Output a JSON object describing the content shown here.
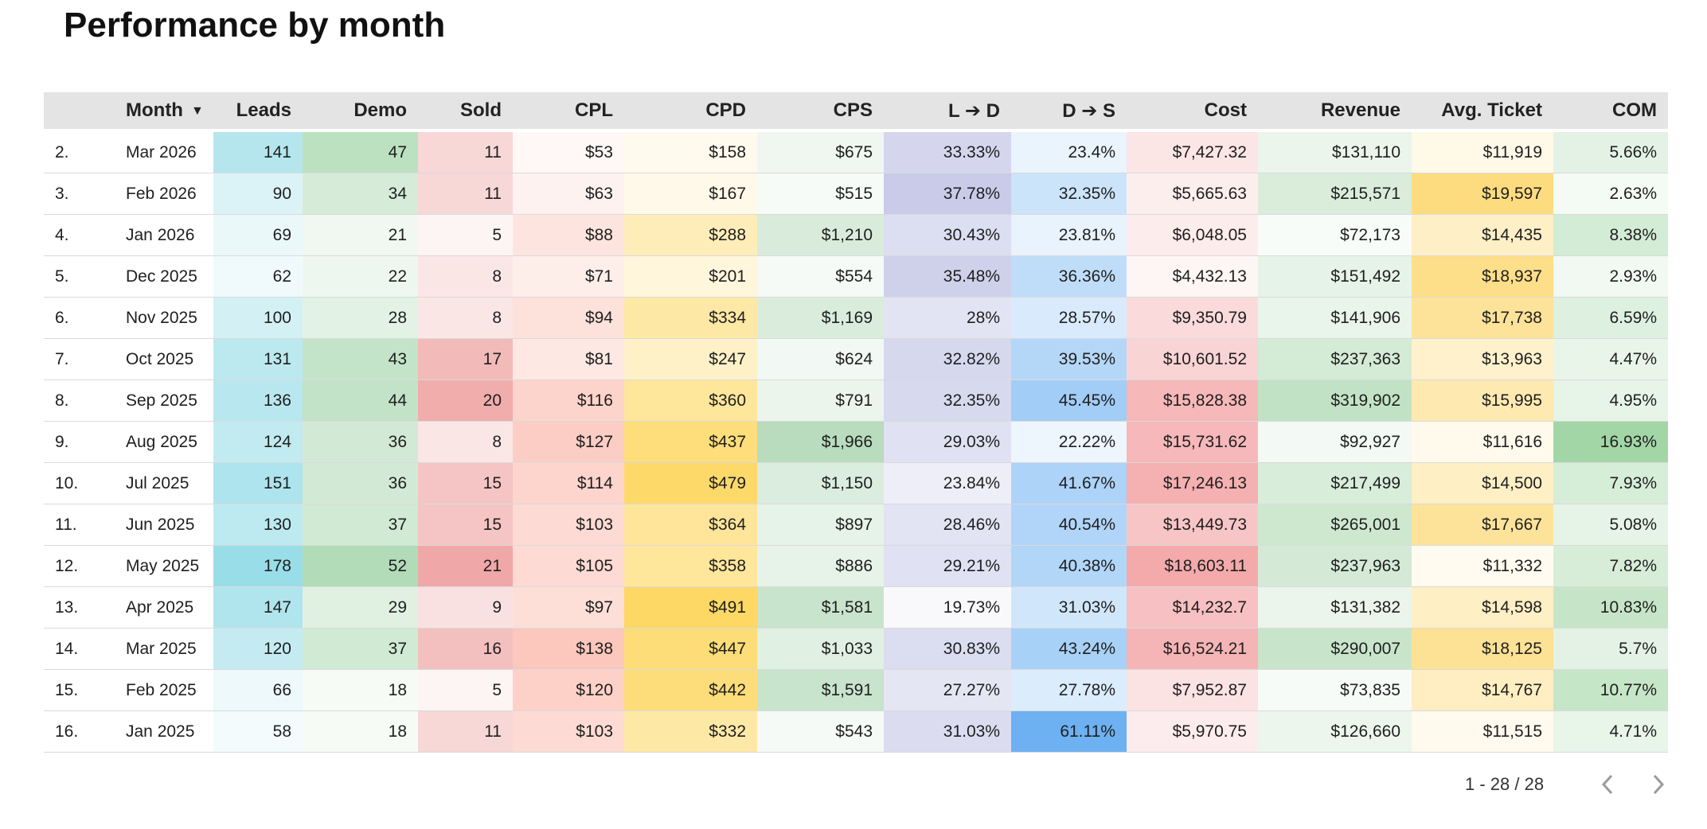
{
  "title": "Performance by month",
  "table": {
    "headers": {
      "index": "",
      "month": "Month",
      "leads": "Leads",
      "demo": "Demo",
      "sold": "Sold",
      "cpl": "CPL",
      "cpd": "CPD",
      "cps": "CPS",
      "l_to_d": "L ➔ D",
      "d_to_s": "D ➔ S",
      "cost": "Cost",
      "revenue": "Revenue",
      "avg_ticket": "Avg. Ticket",
      "com": "COM"
    },
    "sort_icon": "sort-descending-icon",
    "rows": [
      {
        "index": "2.",
        "month": "Mar 2026",
        "leads": "141",
        "demo": "47",
        "sold": "11",
        "cpl": "$53",
        "cpd": "$158",
        "cps": "$675",
        "l_to_d": "33.33%",
        "d_to_s": "23.4%",
        "cost": "$7,427.32",
        "revenue": "$131,110",
        "avg_ticket": "$11,919",
        "com": "5.66%"
      },
      {
        "index": "3.",
        "month": "Feb 2026",
        "leads": "90",
        "demo": "34",
        "sold": "11",
        "cpl": "$63",
        "cpd": "$167",
        "cps": "$515",
        "l_to_d": "37.78%",
        "d_to_s": "32.35%",
        "cost": "$5,665.63",
        "revenue": "$215,571",
        "avg_ticket": "$19,597",
        "com": "2.63%"
      },
      {
        "index": "4.",
        "month": "Jan 2026",
        "leads": "69",
        "demo": "21",
        "sold": "5",
        "cpl": "$88",
        "cpd": "$288",
        "cps": "$1,210",
        "l_to_d": "30.43%",
        "d_to_s": "23.81%",
        "cost": "$6,048.05",
        "revenue": "$72,173",
        "avg_ticket": "$14,435",
        "com": "8.38%"
      },
      {
        "index": "5.",
        "month": "Dec 2025",
        "leads": "62",
        "demo": "22",
        "sold": "8",
        "cpl": "$71",
        "cpd": "$201",
        "cps": "$554",
        "l_to_d": "35.48%",
        "d_to_s": "36.36%",
        "cost": "$4,432.13",
        "revenue": "$151,492",
        "avg_ticket": "$18,937",
        "com": "2.93%"
      },
      {
        "index": "6.",
        "month": "Nov 2025",
        "leads": "100",
        "demo": "28",
        "sold": "8",
        "cpl": "$94",
        "cpd": "$334",
        "cps": "$1,169",
        "l_to_d": "28%",
        "d_to_s": "28.57%",
        "cost": "$9,350.79",
        "revenue": "$141,906",
        "avg_ticket": "$17,738",
        "com": "6.59%"
      },
      {
        "index": "7.",
        "month": "Oct 2025",
        "leads": "131",
        "demo": "43",
        "sold": "17",
        "cpl": "$81",
        "cpd": "$247",
        "cps": "$624",
        "l_to_d": "32.82%",
        "d_to_s": "39.53%",
        "cost": "$10,601.52",
        "revenue": "$237,363",
        "avg_ticket": "$13,963",
        "com": "4.47%"
      },
      {
        "index": "8.",
        "month": "Sep 2025",
        "leads": "136",
        "demo": "44",
        "sold": "20",
        "cpl": "$116",
        "cpd": "$360",
        "cps": "$791",
        "l_to_d": "32.35%",
        "d_to_s": "45.45%",
        "cost": "$15,828.38",
        "revenue": "$319,902",
        "avg_ticket": "$15,995",
        "com": "4.95%"
      },
      {
        "index": "9.",
        "month": "Aug 2025",
        "leads": "124",
        "demo": "36",
        "sold": "8",
        "cpl": "$127",
        "cpd": "$437",
        "cps": "$1,966",
        "l_to_d": "29.03%",
        "d_to_s": "22.22%",
        "cost": "$15,731.62",
        "revenue": "$92,927",
        "avg_ticket": "$11,616",
        "com": "16.93%"
      },
      {
        "index": "10.",
        "month": "Jul 2025",
        "leads": "151",
        "demo": "36",
        "sold": "15",
        "cpl": "$114",
        "cpd": "$479",
        "cps": "$1,150",
        "l_to_d": "23.84%",
        "d_to_s": "41.67%",
        "cost": "$17,246.13",
        "revenue": "$217,499",
        "avg_ticket": "$14,500",
        "com": "7.93%"
      },
      {
        "index": "11.",
        "month": "Jun 2025",
        "leads": "130",
        "demo": "37",
        "sold": "15",
        "cpl": "$103",
        "cpd": "$364",
        "cps": "$897",
        "l_to_d": "28.46%",
        "d_to_s": "40.54%",
        "cost": "$13,449.73",
        "revenue": "$265,001",
        "avg_ticket": "$17,667",
        "com": "5.08%"
      },
      {
        "index": "12.",
        "month": "May 2025",
        "leads": "178",
        "demo": "52",
        "sold": "21",
        "cpl": "$105",
        "cpd": "$358",
        "cps": "$886",
        "l_to_d": "29.21%",
        "d_to_s": "40.38%",
        "cost": "$18,603.11",
        "revenue": "$237,963",
        "avg_ticket": "$11,332",
        "com": "7.82%"
      },
      {
        "index": "13.",
        "month": "Apr 2025",
        "leads": "147",
        "demo": "29",
        "sold": "9",
        "cpl": "$97",
        "cpd": "$491",
        "cps": "$1,581",
        "l_to_d": "19.73%",
        "d_to_s": "31.03%",
        "cost": "$14,232.7",
        "revenue": "$131,382",
        "avg_ticket": "$14,598",
        "com": "10.83%"
      },
      {
        "index": "14.",
        "month": "Mar 2025",
        "leads": "120",
        "demo": "37",
        "sold": "16",
        "cpl": "$138",
        "cpd": "$447",
        "cps": "$1,033",
        "l_to_d": "30.83%",
        "d_to_s": "43.24%",
        "cost": "$16,524.21",
        "revenue": "$290,007",
        "avg_ticket": "$18,125",
        "com": "5.7%"
      },
      {
        "index": "15.",
        "month": "Feb 2025",
        "leads": "66",
        "demo": "18",
        "sold": "5",
        "cpl": "$120",
        "cpd": "$442",
        "cps": "$1,591",
        "l_to_d": "27.27%",
        "d_to_s": "27.78%",
        "cost": "$7,952.87",
        "revenue": "$73,835",
        "avg_ticket": "$14,767",
        "com": "10.77%"
      },
      {
        "index": "16.",
        "month": "Jan 2025",
        "leads": "58",
        "demo": "18",
        "sold": "11",
        "cpl": "$103",
        "cpd": "$332",
        "cps": "$543",
        "l_to_d": "31.03%",
        "d_to_s": "61.11%",
        "cost": "$5,970.75",
        "revenue": "$126,660",
        "avg_ticket": "$11,515",
        "com": "4.71%"
      }
    ],
    "heatmap_colors": {
      "leads": "#99dde8",
      "demo": "#b2dcb8",
      "sold": "#f0a7a7",
      "cpl": "#fcc7bc",
      "cpd": "#fdd865",
      "cps": "#b8dcbd",
      "l_to_d": "#c9cbe9",
      "d_to_s": "#6db1f2",
      "cost": "#f4a9ab",
      "revenue": "#c2e2c5",
      "avg_ticket": "#fddc80",
      "com": "#a3d6a7"
    }
  },
  "pager": {
    "range_text": "1 - 28 / 28",
    "prev_icon": "chevron-left-icon",
    "next_icon": "chevron-right-icon"
  }
}
